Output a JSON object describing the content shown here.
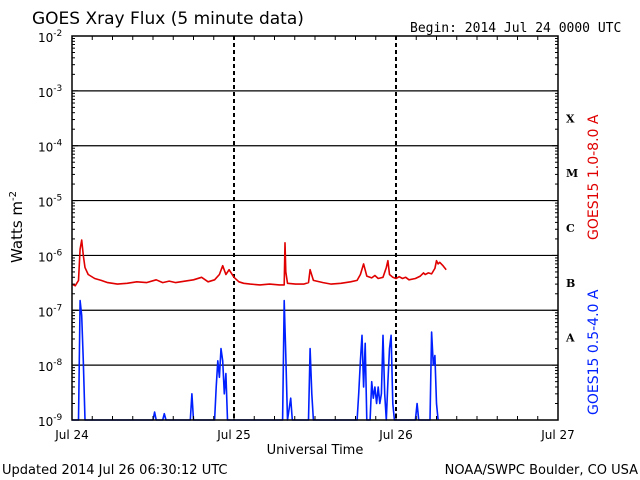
{
  "chart_data": {
    "type": "line",
    "title": "GOES Xray Flux (5 minute data)",
    "begin_label": "Begin:  2014 Jul 24 0000 UTC",
    "xlabel": "Universal Time",
    "ylabel": "Watts m",
    "ylabel_exp": "-2",
    "y_scale": "log",
    "ylim": [
      1e-09,
      0.01
    ],
    "xlim_days": [
      0,
      3
    ],
    "x_ticks": [
      {
        "day": 0,
        "label": "Jul 24"
      },
      {
        "day": 1,
        "label": "Jul 25"
      },
      {
        "day": 2,
        "label": "Jul 26"
      },
      {
        "day": 3,
        "label": "Jul 27"
      }
    ],
    "y_ticks": [
      {
        "exp": -9,
        "label": "10",
        "sup": "-9"
      },
      {
        "exp": -8,
        "label": "10",
        "sup": "-8"
      },
      {
        "exp": -7,
        "label": "10",
        "sup": "-7"
      },
      {
        "exp": -6,
        "label": "10",
        "sup": "-6"
      },
      {
        "exp": -5,
        "label": "10",
        "sup": "-5"
      },
      {
        "exp": -4,
        "label": "10",
        "sup": "-4"
      },
      {
        "exp": -3,
        "label": "10",
        "sup": "-3"
      },
      {
        "exp": -2,
        "label": "10",
        "sup": "-2"
      }
    ],
    "flare_classes": [
      {
        "label": "X",
        "exp": -3.5
      },
      {
        "label": "M",
        "exp": -4.5
      },
      {
        "label": "C",
        "exp": -5.5
      },
      {
        "label": "B",
        "exp": -6.5
      },
      {
        "label": "A",
        "exp": -7.5
      }
    ],
    "grid": true,
    "series": [
      {
        "name": "GOES15 1.0-8.0 A",
        "color": "#e00000",
        "points": [
          [
            0.0,
            3e-07
          ],
          [
            0.02,
            2.8e-07
          ],
          [
            0.04,
            3.5e-07
          ],
          [
            0.05,
            1.3e-06
          ],
          [
            0.06,
            1.9e-06
          ],
          [
            0.07,
            1e-06
          ],
          [
            0.08,
            6e-07
          ],
          [
            0.1,
            4.5e-07
          ],
          [
            0.14,
            3.8e-07
          ],
          [
            0.18,
            3.5e-07
          ],
          [
            0.22,
            3.2e-07
          ],
          [
            0.28,
            3e-07
          ],
          [
            0.34,
            3.1e-07
          ],
          [
            0.4,
            3.3e-07
          ],
          [
            0.46,
            3.2e-07
          ],
          [
            0.52,
            3.6e-07
          ],
          [
            0.56,
            3.2e-07
          ],
          [
            0.6,
            3.4e-07
          ],
          [
            0.64,
            3.2e-07
          ],
          [
            0.7,
            3.4e-07
          ],
          [
            0.75,
            3.6e-07
          ],
          [
            0.8,
            4e-07
          ],
          [
            0.84,
            3.3e-07
          ],
          [
            0.88,
            3.6e-07
          ],
          [
            0.91,
            4.5e-07
          ],
          [
            0.93,
            6.5e-07
          ],
          [
            0.95,
            4.5e-07
          ],
          [
            0.97,
            5.5e-07
          ],
          [
            1.0,
            4e-07
          ],
          [
            1.03,
            3.3e-07
          ],
          [
            1.06,
            3.1e-07
          ],
          [
            1.1,
            3e-07
          ],
          [
            1.16,
            2.9e-07
          ],
          [
            1.22,
            3e-07
          ],
          [
            1.28,
            2.9e-07
          ],
          [
            1.31,
            2.9e-07
          ],
          [
            1.315,
            1.7e-06
          ],
          [
            1.32,
            5e-07
          ],
          [
            1.33,
            3.1e-07
          ],
          [
            1.38,
            3e-07
          ],
          [
            1.43,
            3e-07
          ],
          [
            1.46,
            3.2e-07
          ],
          [
            1.47,
            5.5e-07
          ],
          [
            1.49,
            3.5e-07
          ],
          [
            1.55,
            3.2e-07
          ],
          [
            1.6,
            3e-07
          ],
          [
            1.66,
            3.1e-07
          ],
          [
            1.72,
            3.3e-07
          ],
          [
            1.76,
            3.5e-07
          ],
          [
            1.78,
            4.5e-07
          ],
          [
            1.8,
            7e-07
          ],
          [
            1.82,
            4.2e-07
          ],
          [
            1.85,
            3.9e-07
          ],
          [
            1.87,
            4.3e-07
          ],
          [
            1.89,
            3.8e-07
          ],
          [
            1.92,
            4e-07
          ],
          [
            1.94,
            6e-07
          ],
          [
            1.95,
            8e-07
          ],
          [
            1.96,
            4.5e-07
          ],
          [
            1.98,
            4e-07
          ],
          [
            2.0,
            3.8e-07
          ],
          [
            2.02,
            4.1e-07
          ],
          [
            2.04,
            3.8e-07
          ],
          [
            2.06,
            4e-07
          ],
          [
            2.08,
            3.6e-07
          ],
          [
            2.12,
            3.8e-07
          ],
          [
            2.15,
            4.2e-07
          ],
          [
            2.17,
            4.8e-07
          ],
          [
            2.18,
            4.5e-07
          ],
          [
            2.2,
            4.8e-07
          ],
          [
            2.22,
            4.6e-07
          ],
          [
            2.24,
            5.8e-07
          ],
          [
            2.25,
            8e-07
          ],
          [
            2.26,
            7e-07
          ],
          [
            2.27,
            7.5e-07
          ],
          [
            2.29,
            6.5e-07
          ],
          [
            2.31,
            5.5e-07
          ]
        ]
      },
      {
        "name": "GOES15 0.5-4.0 A",
        "color": "#0020ff",
        "points": [
          [
            0.0,
            1e-09
          ],
          [
            0.04,
            1e-09
          ],
          [
            0.05,
            1.5e-07
          ],
          [
            0.06,
            8e-08
          ],
          [
            0.07,
            1.2e-08
          ],
          [
            0.08,
            1e-09
          ],
          [
            0.5,
            1e-09
          ],
          [
            0.51,
            1.4e-09
          ],
          [
            0.52,
            1e-09
          ],
          [
            0.56,
            1e-09
          ],
          [
            0.57,
            1.3e-09
          ],
          [
            0.58,
            1e-09
          ],
          [
            0.73,
            1e-09
          ],
          [
            0.74,
            3e-09
          ],
          [
            0.75,
            1e-09
          ],
          [
            0.88,
            1e-09
          ],
          [
            0.89,
            4e-09
          ],
          [
            0.9,
            1.2e-08
          ],
          [
            0.91,
            6e-09
          ],
          [
            0.92,
            2e-08
          ],
          [
            0.93,
            1.2e-08
          ],
          [
            0.94,
            3e-09
          ],
          [
            0.95,
            7e-09
          ],
          [
            0.96,
            1e-09
          ],
          [
            1.3,
            1e-09
          ],
          [
            1.31,
            1.5e-07
          ],
          [
            1.32,
            1.5e-08
          ],
          [
            1.33,
            1e-09
          ],
          [
            1.35,
            2.5e-09
          ],
          [
            1.36,
            1e-09
          ],
          [
            1.46,
            1e-09
          ],
          [
            1.47,
            2e-08
          ],
          [
            1.48,
            3e-09
          ],
          [
            1.49,
            1e-09
          ],
          [
            1.76,
            1e-09
          ],
          [
            1.77,
            3e-09
          ],
          [
            1.78,
            1.2e-08
          ],
          [
            1.79,
            3.5e-08
          ],
          [
            1.8,
            4e-09
          ],
          [
            1.81,
            2.5e-08
          ],
          [
            1.82,
            1e-09
          ],
          [
            1.84,
            1e-09
          ],
          [
            1.85,
            5e-09
          ],
          [
            1.86,
            2.5e-09
          ],
          [
            1.87,
            4e-09
          ],
          [
            1.88,
            2e-09
          ],
          [
            1.89,
            4e-09
          ],
          [
            1.9,
            2e-09
          ],
          [
            1.91,
            3e-09
          ],
          [
            1.92,
            3.5e-08
          ],
          [
            1.93,
            3e-09
          ],
          [
            1.94,
            1e-09
          ],
          [
            1.95,
            5e-09
          ],
          [
            1.96,
            2e-08
          ],
          [
            1.97,
            3.5e-08
          ],
          [
            1.98,
            2e-09
          ],
          [
            1.99,
            1e-09
          ],
          [
            2.12,
            1e-09
          ],
          [
            2.13,
            2e-09
          ],
          [
            2.14,
            1e-09
          ],
          [
            2.21,
            1e-09
          ],
          [
            2.22,
            4e-08
          ],
          [
            2.23,
            1e-08
          ],
          [
            2.24,
            1.5e-08
          ],
          [
            2.25,
            2e-09
          ],
          [
            2.26,
            1e-09
          ]
        ]
      }
    ]
  },
  "footer": {
    "updated": "Updated 2014 Jul 26 06:30:12 UTC",
    "credit": "NOAA/SWPC Boulder, CO USA"
  }
}
